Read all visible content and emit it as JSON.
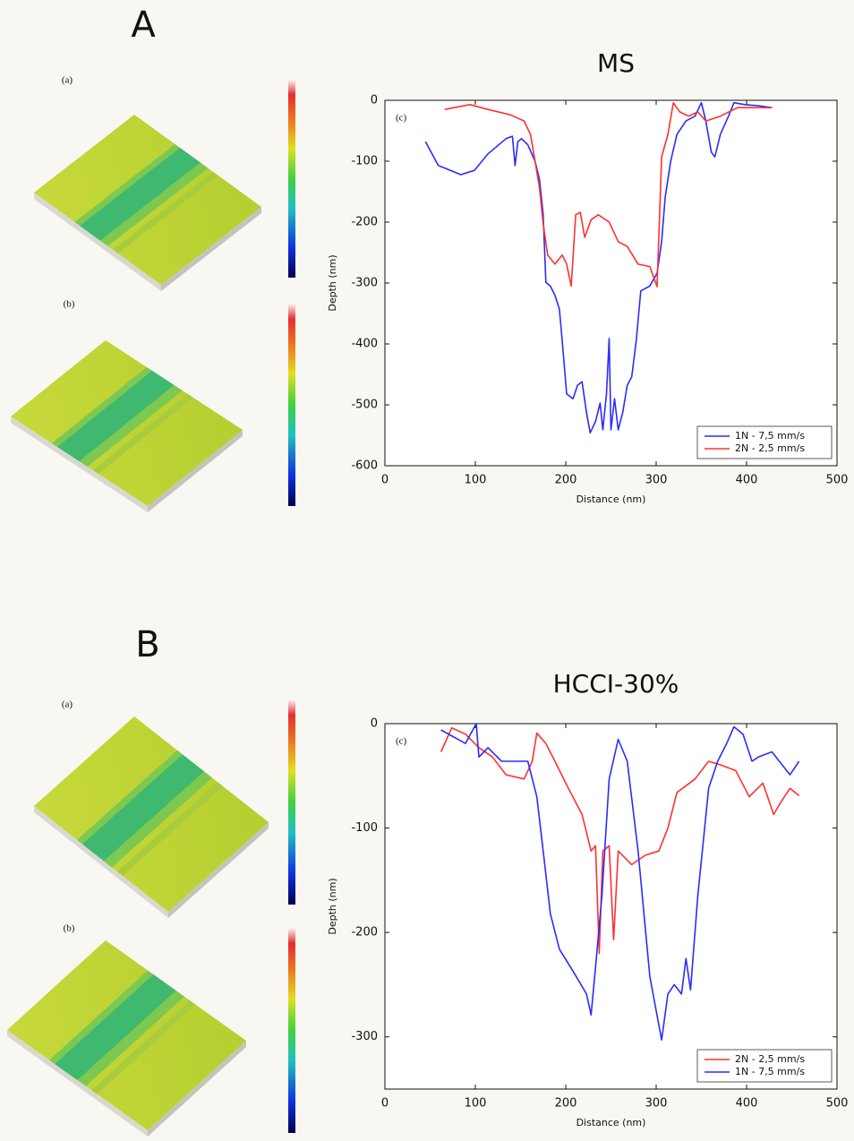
{
  "panels": [
    {
      "label": "A",
      "images": [
        "(a)",
        "(b)"
      ]
    },
    {
      "label": "B",
      "images": [
        "(a)",
        "(b)"
      ]
    }
  ],
  "chart_data": [
    {
      "type": "line",
      "title": "MS",
      "panel_label": "(c)",
      "x_label": "Distance (nm)",
      "y_label": "Depth (nm)",
      "xlim": [
        0,
        500
      ],
      "xticks": [
        0,
        100,
        200,
        300,
        400,
        500
      ],
      "ylim": [
        -600,
        0
      ],
      "yticks": [
        0,
        -100,
        -200,
        -300,
        -400,
        -500,
        -600
      ],
      "grid": false,
      "legend": "lower right",
      "series": [
        {
          "name": "1N - 7,5 mm/s",
          "color": "#2b2bff",
          "x": [
            45,
            59,
            84,
            99,
            114,
            134,
            141,
            144,
            147,
            151,
            158,
            166,
            171,
            175,
            178,
            183,
            188,
            193,
            196,
            201,
            208,
            213,
            218,
            223,
            227,
            233,
            238,
            241,
            245,
            248,
            250,
            254,
            258,
            263,
            268,
            273,
            278,
            283,
            293,
            301,
            306,
            310,
            316,
            323,
            333,
            343,
            350,
            355,
            361,
            365,
            371,
            380,
            386,
            398,
            413,
            428
          ],
          "values": [
            -68,
            -107,
            -122,
            -115,
            -88,
            -63,
            -59,
            -107,
            -68,
            -63,
            -73,
            -100,
            -130,
            -188,
            -299,
            -305,
            -320,
            -343,
            -394,
            -482,
            -490,
            -468,
            -462,
            -513,
            -546,
            -527,
            -497,
            -541,
            -482,
            -391,
            -541,
            -490,
            -541,
            -513,
            -468,
            -454,
            -394,
            -313,
            -305,
            -284,
            -232,
            -159,
            -100,
            -56,
            -34,
            -26,
            -4,
            -34,
            -85,
            -93,
            -56,
            -26,
            -4,
            -7,
            -9,
            -12
          ]
        },
        {
          "name": "2N - 2,5 mm/s",
          "color": "#ff3030",
          "x": [
            66,
            94,
            114,
            139,
            154,
            161,
            166,
            171,
            175,
            180,
            188,
            196,
            201,
            206,
            211,
            216,
            221,
            228,
            236,
            248,
            258,
            268,
            280,
            293,
            301,
            306,
            313,
            319,
            326,
            336,
            346,
            355,
            371,
            390,
            428
          ],
          "values": [
            -15,
            -7,
            -15,
            -24,
            -34,
            -56,
            -100,
            -144,
            -203,
            -254,
            -269,
            -254,
            -269,
            -305,
            -188,
            -184,
            -225,
            -196,
            -188,
            -200,
            -232,
            -240,
            -269,
            -273,
            -306,
            -93,
            -56,
            -4,
            -19,
            -26,
            -19,
            -34,
            -26,
            -12,
            -12
          ]
        }
      ]
    },
    {
      "type": "line",
      "title": "HCCI-30%",
      "panel_label": "(c)",
      "x_label": "Distance (nm)",
      "y_label": "Depth (nm)",
      "xlim": [
        0,
        500
      ],
      "xticks": [
        0,
        100,
        200,
        300,
        400,
        500
      ],
      "ylim": [
        -350,
        0
      ],
      "yticks": [
        0,
        -100,
        -200,
        -300
      ],
      "grid": false,
      "legend": "lower right",
      "series": [
        {
          "name": "2N - 2,5 mm/s",
          "color": "#ff3030",
          "x": [
            62,
            74,
            89,
            104,
            119,
            134,
            154,
            163,
            168,
            178,
            188,
            203,
            218,
            228,
            233,
            237,
            241,
            248,
            253,
            258,
            273,
            288,
            303,
            313,
            323,
            343,
            358,
            373,
            388,
            403,
            418,
            430,
            438,
            448,
            458
          ],
          "values": [
            -27,
            -4,
            -10,
            -23,
            -32,
            -49,
            -53,
            -36,
            -9,
            -19,
            -36,
            -62,
            -87,
            -122,
            -117,
            -220,
            -122,
            -117,
            -207,
            -122,
            -135,
            -126,
            -122,
            -100,
            -66,
            -53,
            -36,
            -40,
            -45,
            -70,
            -57,
            -87,
            -75,
            -62,
            -69
          ]
        },
        {
          "name": "1N - 7,5 mm/s",
          "color": "#2b2bff",
          "x": [
            62,
            89,
            101,
            104,
            114,
            129,
            158,
            168,
            175,
            183,
            193,
            208,
            223,
            228,
            233,
            240,
            248,
            258,
            268,
            280,
            293,
            306,
            313,
            320,
            328,
            333,
            338,
            346,
            358,
            368,
            378,
            386,
            396,
            406,
            413,
            428,
            448,
            458
          ],
          "values": [
            -6,
            -19,
            0,
            -32,
            -23,
            -36,
            -36,
            -70,
            -122,
            -182,
            -216,
            -237,
            -259,
            -279,
            -233,
            -165,
            -53,
            -15,
            -36,
            -122,
            -242,
            -303,
            -259,
            -250,
            -259,
            -225,
            -255,
            -165,
            -62,
            -36,
            -19,
            -3,
            -10,
            -36,
            -32,
            -27,
            -49,
            -36
          ]
        }
      ]
    }
  ]
}
